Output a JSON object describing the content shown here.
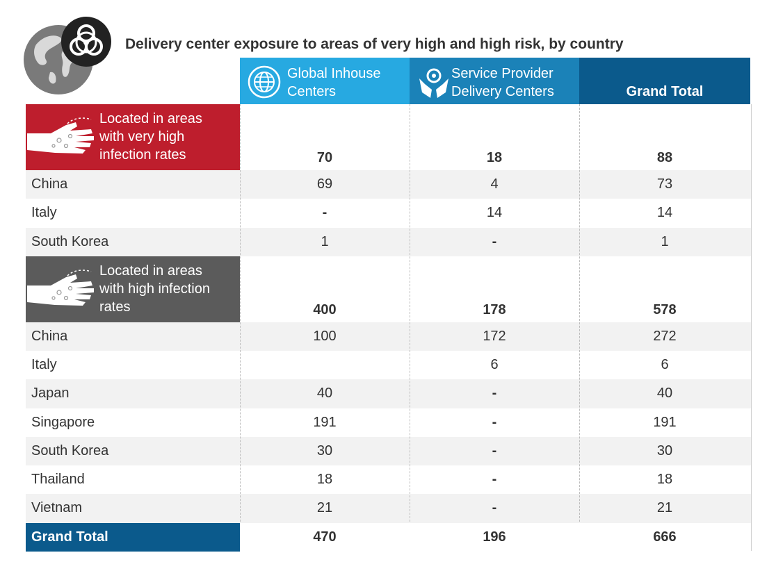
{
  "title": "Delivery center exposure to areas of very high and high risk, by country",
  "icons": {
    "globe": "globe-icon",
    "biohazard": "biohazard-icon",
    "hand": "infected-hand-icon",
    "gic": "globe-network-icon",
    "spdc": "hands-gear-icon"
  },
  "colors": {
    "gic": "#27A9E1",
    "spdc": "#1B82B8",
    "total": "#0B5A8C",
    "very_high": "#BE1E2D",
    "high": "#5B5B5B",
    "band": "#f2f2f2"
  },
  "columns": {
    "gic": [
      "Global Inhouse",
      "Centers"
    ],
    "spdc": [
      "Service Provider",
      "Delivery Centers"
    ],
    "total": "Grand Total"
  },
  "chart_data": {
    "type": "table",
    "title": "Delivery center exposure to areas of very high and high risk, by country",
    "columns": [
      "Global Inhouse Centers",
      "Service Provider Delivery Centers",
      "Grand Total"
    ],
    "groups": [
      {
        "label": [
          "Located in areas",
          "with very high",
          "infection rates"
        ],
        "totals": [
          "70",
          "18",
          "88"
        ],
        "rows": [
          {
            "name": "China",
            "values": [
              "69",
              "4",
              "73"
            ]
          },
          {
            "name": "Italy",
            "values": [
              "-",
              "14",
              "14"
            ]
          },
          {
            "name": "South Korea",
            "values": [
              "1",
              "-",
              "1"
            ]
          }
        ]
      },
      {
        "label": [
          "Located in areas",
          "with high infection",
          "rates"
        ],
        "totals": [
          "400",
          "178",
          "578"
        ],
        "rows": [
          {
            "name": "China",
            "values": [
              "100",
              "172",
              "272"
            ]
          },
          {
            "name": "Italy",
            "values": [
              "",
              "6",
              "6"
            ]
          },
          {
            "name": "Japan",
            "values": [
              "40",
              "-",
              "40"
            ]
          },
          {
            "name": "Singapore",
            "values": [
              "191",
              "-",
              "191"
            ]
          },
          {
            "name": "South Korea",
            "values": [
              "30",
              "-",
              "30"
            ]
          },
          {
            "name": "Thailand",
            "values": [
              "18",
              "-",
              "18"
            ]
          },
          {
            "name": "Vietnam",
            "values": [
              "21",
              "-",
              "21"
            ]
          }
        ]
      }
    ],
    "grand_total": {
      "name": "Grand Total",
      "values": [
        "470",
        "196",
        "666"
      ]
    }
  }
}
